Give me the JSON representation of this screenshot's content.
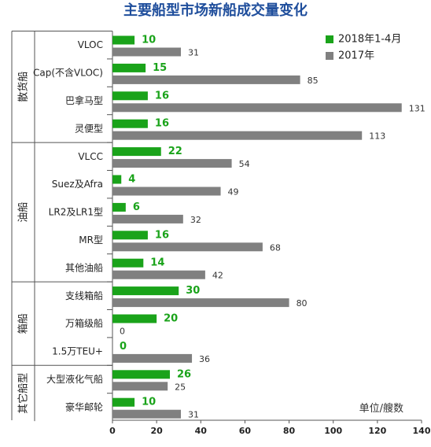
{
  "chart_data": {
    "type": "bar",
    "orientation": "horizontal",
    "title": "主要船型市场新船成交量变化",
    "unit_note": "单位/艘数",
    "xlim": [
      0,
      140
    ],
    "xticks": [
      "0",
      "20",
      "40",
      "60",
      "80",
      "100",
      "120",
      "140"
    ],
    "legend": {
      "position": "top-right",
      "items": [
        "2018年1-4月",
        "2017年"
      ]
    },
    "colors": {
      "series_2018": "#1aa31a",
      "series_2017": "#808080",
      "title": "#1f4e9c"
    },
    "groups": [
      {
        "name": "散货船",
        "categories": [
          "VLOC",
          "Cap(不含VLOC)",
          "巴拿马型",
          "灵便型"
        ]
      },
      {
        "name": "油船",
        "categories": [
          "VLCC",
          "Suez及Afra",
          "LR2及LR1型",
          "MR型",
          "其他油船"
        ]
      },
      {
        "name": "箱船",
        "categories": [
          "支线箱船",
          "万箱级船",
          "1.5万TEU+"
        ]
      },
      {
        "name": "其它船型",
        "categories": [
          "大型液化气船",
          "豪华邮轮"
        ]
      }
    ],
    "categories": [
      "VLOC",
      "Cap(不含VLOC)",
      "巴拿马型",
      "灵便型",
      "VLCC",
      "Suez及Afra",
      "LR2及LR1型",
      "MR型",
      "其他油船",
      "支线箱船",
      "万箱级船",
      "1.5万TEU+",
      "大型液化气船",
      "豪华邮轮"
    ],
    "series": [
      {
        "name": "2018年1-4月",
        "values": [
          10,
          15,
          16,
          16,
          22,
          4,
          6,
          16,
          14,
          30,
          20,
          0,
          26,
          10
        ]
      },
      {
        "name": "2017年",
        "values": [
          31,
          85,
          131,
          113,
          54,
          49,
          32,
          68,
          42,
          80,
          0,
          36,
          25,
          31
        ]
      }
    ]
  }
}
